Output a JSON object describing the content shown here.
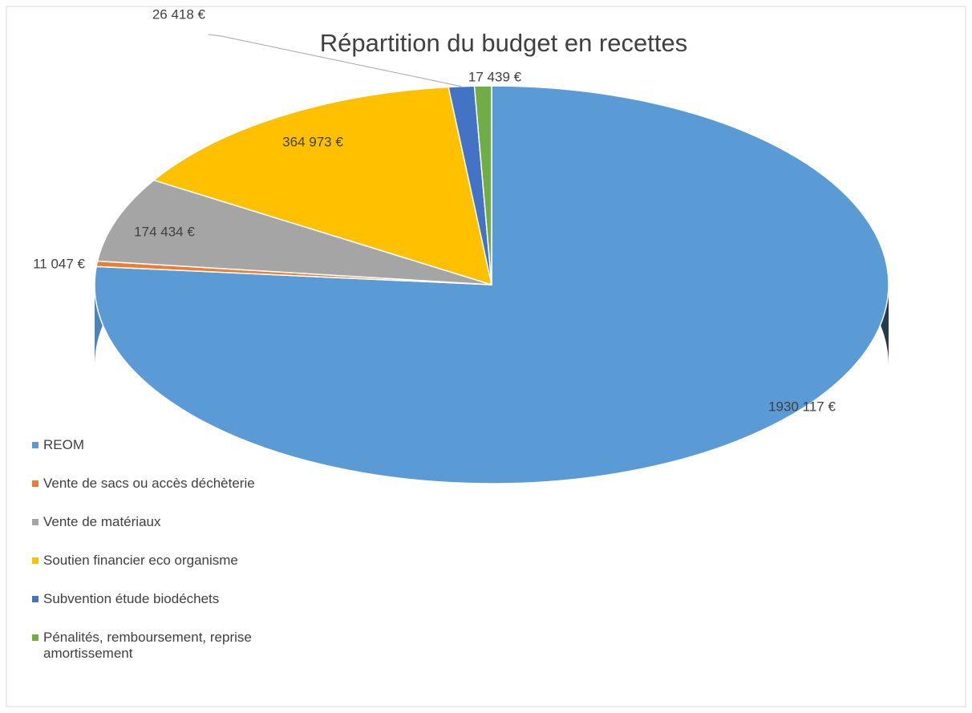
{
  "chart_data": {
    "type": "pie3d",
    "title": "Répartition du budget en recettes",
    "categories": [
      "REOM",
      "Vente de sacs ou accès déchèterie",
      "Vente de matériaux",
      "Soutien financier eco organisme",
      "Subvention étude biodéchets",
      "Pénalités, remboursement, reprise amortissement"
    ],
    "values": [
      1930117,
      11047,
      174434,
      364973,
      26418,
      17439
    ],
    "value_labels": [
      "1930 117 €",
      "11 047 €",
      "174 434 €",
      "364 973 €",
      "26 418 €",
      "17 439 €"
    ],
    "colors": [
      "#5b9bd5",
      "#ed7d31",
      "#a5a5a5",
      "#ffc000",
      "#4472c4",
      "#70ad47"
    ],
    "legend": "left"
  }
}
